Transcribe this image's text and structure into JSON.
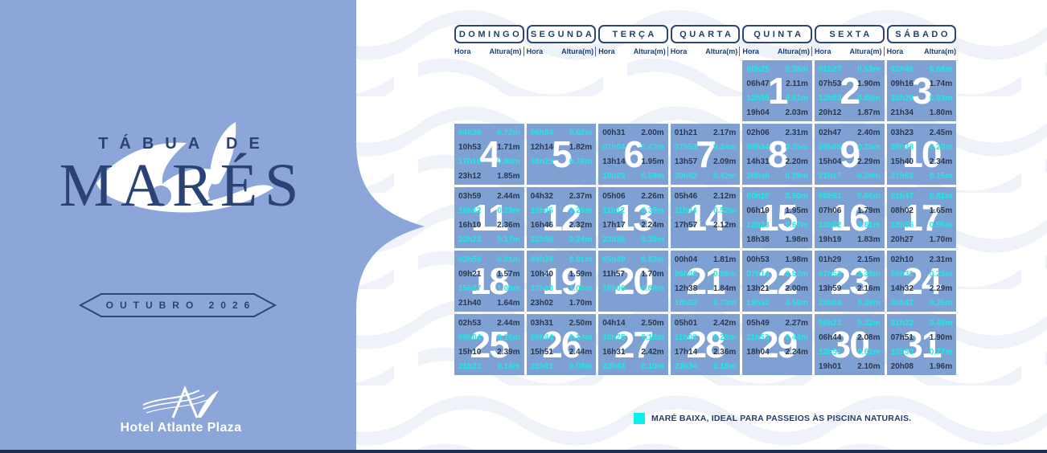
{
  "title": {
    "line1": "TÁBUA DE",
    "line2": "MARÉS"
  },
  "period_badge": "OUTUBRO 2026",
  "logo": {
    "hotel_name": "Hotel Atlante Plaza"
  },
  "weekday_headers": [
    "DOMINGO",
    "SEGUNDA",
    "TERÇA",
    "QUARTA",
    "QUINTA",
    "SEXTA",
    "SÁBADO"
  ],
  "column_labels": {
    "time": "Hora",
    "height": "Altura(m)"
  },
  "legend": {
    "text": "MARÉ BAIXA, IDEAL PARA PASSEIOS ÀS PISCINA NATURAIS.",
    "swatch_color": "#0AEFE6"
  },
  "colors": {
    "panel_blue": "#8ca6d9",
    "cell_blue": "#7fa0d3",
    "navy": "#1f3f72",
    "tide_text": "#2a3950",
    "low_tide_cyan": "#1fe9e2",
    "bottom_strip": "#1d2f52"
  },
  "calendar": {
    "month_start_column": 4,
    "days": [
      {
        "day": 1,
        "tides": [
          {
            "time": "00h25",
            "height": "0.36m",
            "low": true
          },
          {
            "time": "06h47",
            "height": "2.11m",
            "low": false
          },
          {
            "time": "12h55",
            "height": "0.61m",
            "low": true
          },
          {
            "time": "19h04",
            "height": "2.03m",
            "low": false
          }
        ]
      },
      {
        "day": 2,
        "tides": [
          {
            "time": "01h27",
            "height": "0.53m",
            "low": true
          },
          {
            "time": "07h53",
            "height": "1.90m",
            "low": false
          },
          {
            "time": "13h53",
            "height": "0.80m",
            "low": true
          },
          {
            "time": "20h12",
            "height": "1.87m",
            "low": false
          }
        ]
      },
      {
        "day": 3,
        "tides": [
          {
            "time": "02h46",
            "height": "0.68m",
            "low": true
          },
          {
            "time": "09h16",
            "height": "1.74m",
            "low": false
          },
          {
            "time": "15h29",
            "height": "0.93m",
            "low": true
          },
          {
            "time": "21h34",
            "height": "1.80m",
            "low": false
          }
        ]
      },
      {
        "day": 4,
        "tides": [
          {
            "time": "04h36",
            "height": "0.72m",
            "low": true
          },
          {
            "time": "10h53",
            "height": "1.71m",
            "low": false
          },
          {
            "time": "17h16",
            "height": "0.90m",
            "low": true
          },
          {
            "time": "23h12",
            "height": "1.85m",
            "low": false
          }
        ]
      },
      {
        "day": 5,
        "tides": [
          {
            "time": "06h04",
            "height": "0.62m",
            "low": true
          },
          {
            "time": "12h14",
            "height": "1.82m",
            "low": false
          },
          {
            "time": "18h25",
            "height": "0.76m",
            "low": true
          }
        ]
      },
      {
        "day": 6,
        "tides": [
          {
            "time": "00h31",
            "height": "2.00m",
            "low": false
          },
          {
            "time": "07h04",
            "height": "0.47m",
            "low": true
          },
          {
            "time": "13h14",
            "height": "1.95m",
            "low": false
          },
          {
            "time": "19h23",
            "height": "0.59m",
            "low": true
          }
        ]
      },
      {
        "day": 7,
        "tides": [
          {
            "time": "01h21",
            "height": "2.17m",
            "low": false
          },
          {
            "time": "07h53",
            "height": "0.34m",
            "low": true
          },
          {
            "time": "13h57",
            "height": "2.09m",
            "low": false
          },
          {
            "time": "20h02",
            "height": "0.42m",
            "low": true
          }
        ]
      },
      {
        "day": 8,
        "tides": [
          {
            "time": "02h06",
            "height": "2.31m",
            "low": false
          },
          {
            "time": "08h34",
            "height": "0.25m",
            "low": true
          },
          {
            "time": "14h31",
            "height": "2.20m",
            "low": false
          },
          {
            "time": "20h40",
            "height": "0.29m",
            "low": true
          }
        ]
      },
      {
        "day": 9,
        "tides": [
          {
            "time": "02h47",
            "height": "2.40m",
            "low": false
          },
          {
            "time": "09h06",
            "height": "0.20m",
            "low": true
          },
          {
            "time": "15h04",
            "height": "2.29m",
            "low": false
          },
          {
            "time": "21h17",
            "height": "0.20m",
            "low": true
          }
        ]
      },
      {
        "day": 10,
        "tides": [
          {
            "time": "03h23",
            "height": "2.45m",
            "low": false
          },
          {
            "time": "09h38",
            "height": "0.20m",
            "low": true
          },
          {
            "time": "15h40",
            "height": "2.34m",
            "low": false
          },
          {
            "time": "21h53",
            "height": "0.15m",
            "low": true
          }
        ]
      },
      {
        "day": 11,
        "tides": [
          {
            "time": "03h59",
            "height": "2.44m",
            "low": false
          },
          {
            "time": "10h12",
            "height": "0.23m",
            "low": true
          },
          {
            "time": "16h10",
            "height": "2.36m",
            "low": false
          },
          {
            "time": "22h23",
            "height": "0.17m",
            "low": true
          }
        ]
      },
      {
        "day": 12,
        "tides": [
          {
            "time": "04h32",
            "height": "2.37m",
            "low": false
          },
          {
            "time": "10h46",
            "height": "0.29m",
            "low": true
          },
          {
            "time": "16h46",
            "height": "2.32m",
            "low": false
          },
          {
            "time": "22h59",
            "height": "0.24m",
            "low": true
          }
        ]
      },
      {
        "day": 13,
        "tides": [
          {
            "time": "05h06",
            "height": "2.26m",
            "low": false
          },
          {
            "time": "11h12",
            "height": "0.39m",
            "low": true
          },
          {
            "time": "17h17",
            "height": "2.24m",
            "low": false
          },
          {
            "time": "23h36",
            "height": "0.35m",
            "low": true
          }
        ]
      },
      {
        "day": 14,
        "tides": [
          {
            "time": "05h46",
            "height": "2.12m",
            "low": false
          },
          {
            "time": "11h44",
            "height": "0.52m",
            "low": true
          },
          {
            "time": "17h57",
            "height": "2.12m",
            "low": false
          }
        ]
      },
      {
        "day": 15,
        "tides": [
          {
            "time": "00h10",
            "height": "0.50m",
            "low": true
          },
          {
            "time": "06h19",
            "height": "1.95m",
            "low": false
          },
          {
            "time": "12h23",
            "height": "0.67m",
            "low": true
          },
          {
            "time": "18h38",
            "height": "1.98m",
            "low": false
          }
        ]
      },
      {
        "day": 16,
        "tides": [
          {
            "time": "00h51",
            "height": "0.66m",
            "low": true
          },
          {
            "time": "07h06",
            "height": "1.79m",
            "low": false
          },
          {
            "time": "13h02",
            "height": "0.81m",
            "low": true
          },
          {
            "time": "19h19",
            "height": "1.83m",
            "low": false
          }
        ]
      },
      {
        "day": 17,
        "tides": [
          {
            "time": "01h47",
            "height": "0.81m",
            "low": true
          },
          {
            "time": "08h02",
            "height": "1.65m",
            "low": false
          },
          {
            "time": "13h55",
            "height": "0.95m",
            "low": true
          },
          {
            "time": "20h27",
            "height": "1.70m",
            "low": false
          }
        ]
      },
      {
        "day": 18,
        "tides": [
          {
            "time": "02h59",
            "height": "0.91m",
            "low": true
          },
          {
            "time": "09h21",
            "height": "1.57m",
            "low": false
          },
          {
            "time": "15h27",
            "height": "1.03m",
            "low": true
          },
          {
            "time": "21h40",
            "height": "1.64m",
            "low": false
          }
        ]
      },
      {
        "day": 19,
        "tides": [
          {
            "time": "04h38",
            "height": "0.91m",
            "low": true
          },
          {
            "time": "10h40",
            "height": "1.59m",
            "low": false
          },
          {
            "time": "17h08",
            "height": "1.00m",
            "low": true
          },
          {
            "time": "23h02",
            "height": "1.70m",
            "low": false
          }
        ]
      },
      {
        "day": 20,
        "tides": [
          {
            "time": "05h49",
            "height": "0.82m",
            "low": true
          },
          {
            "time": "11h57",
            "height": "1.70m",
            "low": false
          },
          {
            "time": "18h06",
            "height": "0.88m",
            "low": true
          }
        ]
      },
      {
        "day": 21,
        "tides": [
          {
            "time": "00h04",
            "height": "1.81m",
            "low": false
          },
          {
            "time": "06h40",
            "height": "0.68m",
            "low": true
          },
          {
            "time": "12h38",
            "height": "1.84m",
            "low": false
          },
          {
            "time": "18h53",
            "height": "0.73m",
            "low": true
          }
        ]
      },
      {
        "day": 22,
        "tides": [
          {
            "time": "00h53",
            "height": "1.98m",
            "low": false
          },
          {
            "time": "07h14",
            "height": "0.52m",
            "low": true
          },
          {
            "time": "13h21",
            "height": "2.00m",
            "low": false
          },
          {
            "time": "19h32",
            "height": "0.56m",
            "low": true
          }
        ]
      },
      {
        "day": 23,
        "tides": [
          {
            "time": "01h29",
            "height": "2.15m",
            "low": false
          },
          {
            "time": "07h53",
            "height": "0.38m",
            "low": true
          },
          {
            "time": "13h59",
            "height": "2.16m",
            "low": false
          },
          {
            "time": "20h04",
            "height": "0.39m",
            "low": true
          }
        ]
      },
      {
        "day": 24,
        "tides": [
          {
            "time": "02h10",
            "height": "2.31m",
            "low": false
          },
          {
            "time": "08h31",
            "height": "0.25m",
            "low": true
          },
          {
            "time": "14h32",
            "height": "2.29m",
            "low": false
          },
          {
            "time": "20h42",
            "height": "0.25m",
            "low": true
          }
        ]
      },
      {
        "day": 25,
        "tides": [
          {
            "time": "02h53",
            "height": "2.44m",
            "low": false
          },
          {
            "time": "09h04",
            "height": "0.16m",
            "low": true
          },
          {
            "time": "15h10",
            "height": "2.39m",
            "low": false
          },
          {
            "time": "21h21",
            "height": "0.14m",
            "low": true
          }
        ]
      },
      {
        "day": 26,
        "tides": [
          {
            "time": "03h31",
            "height": "2.50m",
            "low": false
          },
          {
            "time": "09h44",
            "height": "0.14m",
            "low": true
          },
          {
            "time": "15h51",
            "height": "2.44m",
            "low": false
          },
          {
            "time": "22h01",
            "height": "0.08m",
            "low": true
          }
        ]
      },
      {
        "day": 27,
        "tides": [
          {
            "time": "04h14",
            "height": "2.50m",
            "low": false
          },
          {
            "time": "10h25",
            "height": "0.18m",
            "low": true
          },
          {
            "time": "16h31",
            "height": "2.42m",
            "low": false
          },
          {
            "time": "22h44",
            "height": "0.10m",
            "low": true
          }
        ]
      },
      {
        "day": 28,
        "tides": [
          {
            "time": "05h01",
            "height": "2.42m",
            "low": false
          },
          {
            "time": "11h06",
            "height": "0.28m",
            "low": true
          },
          {
            "time": "17h14",
            "height": "2.36m",
            "low": false
          },
          {
            "time": "23h34",
            "height": "0.18m",
            "low": true
          }
        ]
      },
      {
        "day": 29,
        "tides": [
          {
            "time": "05h49",
            "height": "2.27m",
            "low": false
          },
          {
            "time": "11h53",
            "height": "0.44m",
            "low": true
          },
          {
            "time": "18h04",
            "height": "2.24m",
            "low": false
          }
        ]
      },
      {
        "day": 30,
        "tides": [
          {
            "time": "00h21",
            "height": "0.32m",
            "low": true
          },
          {
            "time": "06h44",
            "height": "2.08m",
            "low": false
          },
          {
            "time": "12h51",
            "height": "0.61m",
            "low": true
          },
          {
            "time": "19h01",
            "height": "2.10m",
            "low": false
          }
        ]
      },
      {
        "day": 31,
        "tides": [
          {
            "time": "01h32",
            "height": "0.48m",
            "low": true
          },
          {
            "time": "07h51",
            "height": "1.90m",
            "low": false
          },
          {
            "time": "13h53",
            "height": "0.77m",
            "low": true
          },
          {
            "time": "20h08",
            "height": "1.96m",
            "low": false
          }
        ]
      }
    ]
  }
}
